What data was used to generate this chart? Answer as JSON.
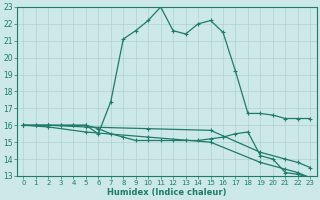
{
  "xlabel": "Humidex (Indice chaleur)",
  "bg_color": "#cce8e8",
  "grid_color": "#b0d0d0",
  "line_color": "#1e7b6b",
  "xlim": [
    -0.5,
    23.5
  ],
  "ylim": [
    13,
    23
  ],
  "yticks": [
    13,
    14,
    15,
    16,
    17,
    18,
    19,
    20,
    21,
    22,
    23
  ],
  "xticks": [
    0,
    1,
    2,
    3,
    4,
    5,
    6,
    7,
    8,
    9,
    10,
    11,
    12,
    13,
    14,
    15,
    16,
    17,
    18,
    19,
    20,
    21,
    22,
    23
  ],
  "line1_x": [
    0,
    1,
    2,
    3,
    4,
    5,
    6,
    7,
    8,
    9,
    10,
    11,
    12,
    13,
    14,
    15,
    16,
    17,
    18,
    19,
    20,
    21,
    22,
    23
  ],
  "line1_y": [
    16,
    16,
    16,
    16,
    16,
    16,
    15.5,
    17.4,
    21.1,
    21.6,
    22.2,
    23.0,
    21.6,
    21.4,
    22.0,
    22.2,
    21.5,
    19.2,
    16.7,
    16.7,
    16.6,
    16.4,
    16.4,
    16.4
  ],
  "line2_x": [
    0,
    1,
    2,
    3,
    4,
    5,
    6,
    7,
    8,
    9,
    10,
    11,
    12,
    13,
    14,
    15,
    16,
    17,
    18,
    19,
    20,
    21,
    22,
    23
  ],
  "line2_y": [
    16,
    16,
    16,
    16,
    16,
    16,
    15.8,
    15.5,
    15.3,
    15.1,
    15.1,
    15.1,
    15.1,
    15.1,
    15.1,
    15.2,
    15.3,
    15.5,
    15.6,
    14.2,
    14.0,
    13.2,
    13.1,
    12.9
  ],
  "line3_x": [
    0,
    2,
    5,
    10,
    15,
    19,
    21,
    22,
    23
  ],
  "line3_y": [
    16,
    16,
    15.9,
    15.8,
    15.7,
    14.4,
    14.0,
    13.8,
    13.5
  ],
  "line4_x": [
    0,
    2,
    5,
    10,
    15,
    19,
    21,
    22,
    23
  ],
  "line4_y": [
    16,
    15.9,
    15.6,
    15.3,
    15.0,
    13.8,
    13.4,
    13.2,
    12.9
  ]
}
